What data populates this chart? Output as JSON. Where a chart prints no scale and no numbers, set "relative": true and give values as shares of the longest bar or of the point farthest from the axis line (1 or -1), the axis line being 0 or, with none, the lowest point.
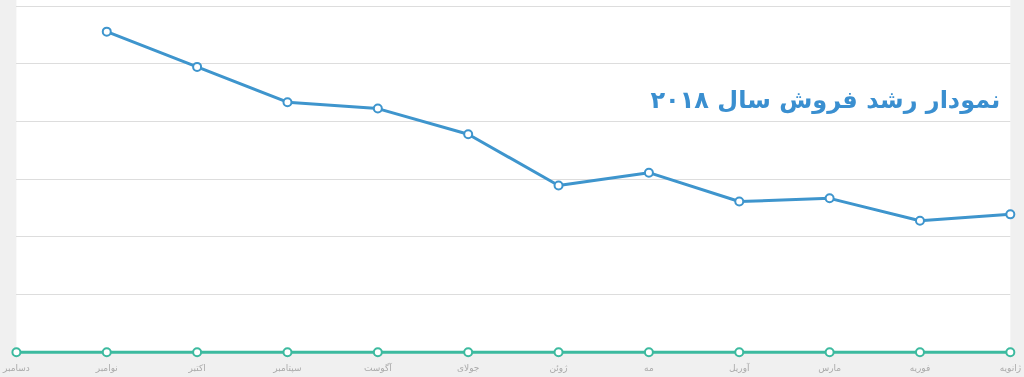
{
  "chart_data": {
    "type": "line",
    "title": "نمودار رشد فروش سال ۲۰۱۸",
    "relative": true,
    "grid": "y",
    "marker": "circle",
    "legend": false,
    "categories": [
      "دسامبر",
      "نوامبر",
      "اکتبر",
      "سپتامبر",
      "آگوست",
      "جولای",
      "ژوئن",
      "مه",
      "آوریل",
      "مارس",
      "فوریه",
      "ژانویه"
    ],
    "series": [
      {
        "color": "#3e95cd",
        "values": [
          null,
          1,
          0.89,
          0.78,
          0.76,
          0.68,
          0.52,
          0.56,
          0.47,
          0.48,
          0.41,
          0.43
        ]
      },
      {
        "color": "#3cba9f",
        "values": [
          0,
          0,
          0,
          0,
          0,
          0,
          0,
          0,
          0,
          0,
          0,
          0
        ]
      }
    ]
  }
}
